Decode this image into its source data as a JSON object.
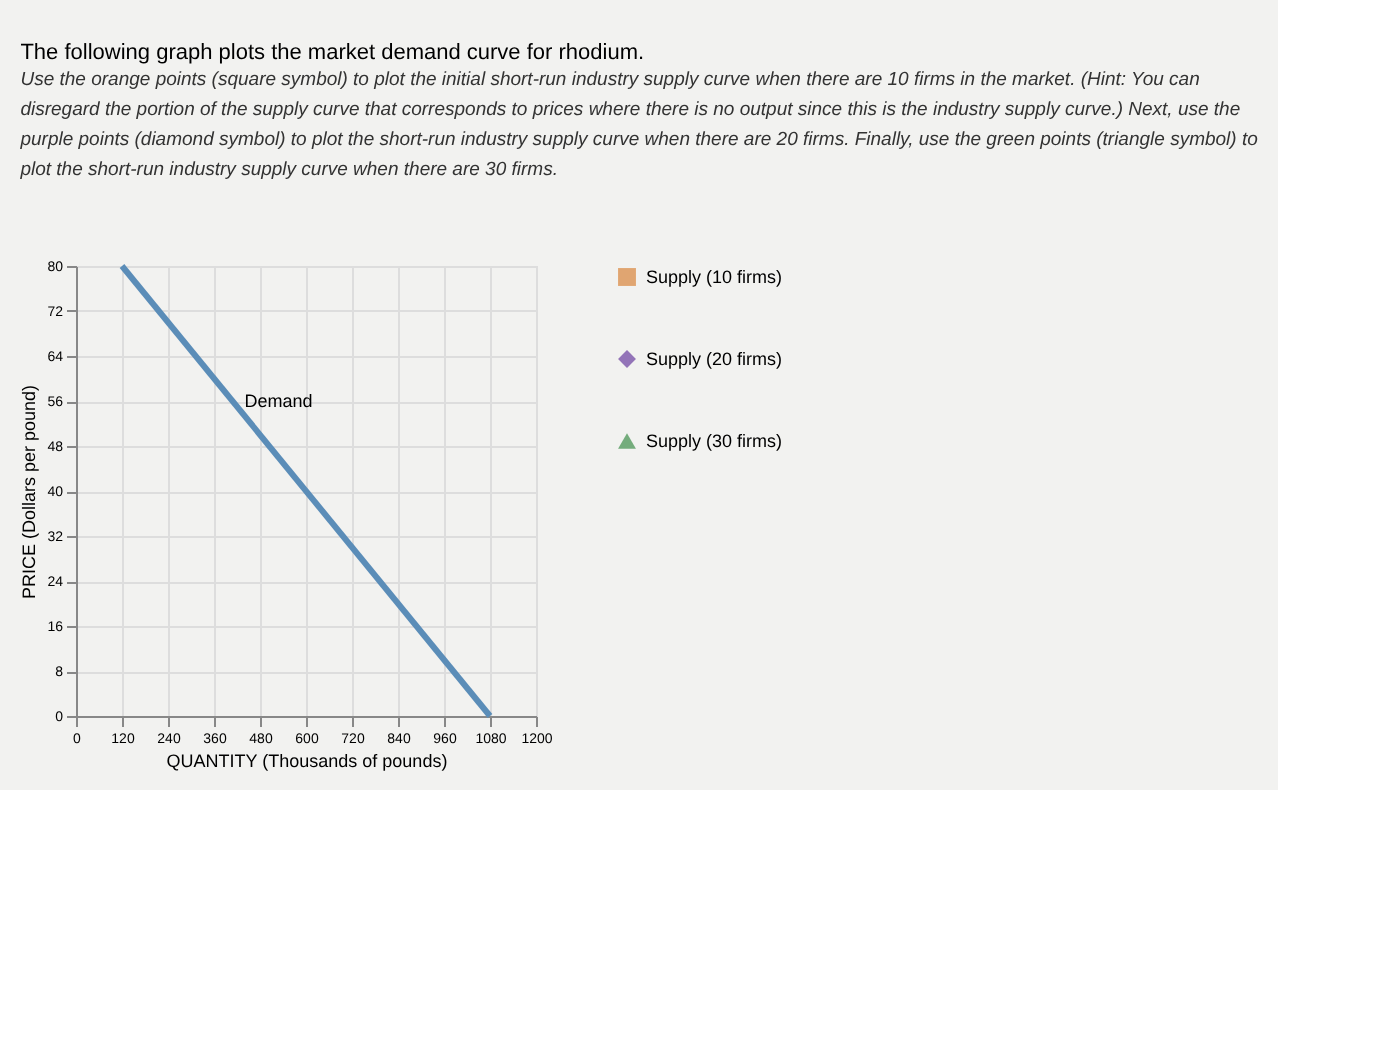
{
  "chart_data": {
    "type": "line",
    "title": "The following graph plots the market demand curve for rhodium.",
    "subtitle": [
      "Use the orange points (square symbol) to plot the initial short-run industry supply curve when there are 10 firms in the market. (Hint: You can",
      "disregard the portion of the supply curve that corresponds to prices where there is no output since this is the industry supply curve.) Next, use the",
      "purple points (diamond symbol) to plot the short-run industry supply curve when there are 20 firms. Finally, use the green points (triangle symbol) to",
      "plot the short-run industry supply curve when there are 30 firms."
    ],
    "xlabel": "QUANTITY (Thousands of pounds)",
    "ylabel": "PRICE (Dollars per pound)",
    "series": [
      {
        "color": "#5b8db8",
        "x": [
          120,
          1080
        ],
        "values": [
          80,
          0
        ]
      },
      {
        "type": "scatter",
        "name": "Supply (10 firms)",
        "color": "#d9843b",
        "marker": "square"
      },
      {
        "type": "scatter",
        "name": "Supply (20 firms)",
        "color": "#6b3fa0",
        "marker": "diamond"
      },
      {
        "type": "scatter",
        "name": "Supply (30 firms)",
        "color": "#3e8e4a",
        "marker": "triangle"
      }
    ],
    "annotations": [
      {
        "text": "Demand",
        "x": 408,
        "y": 56
      }
    ],
    "xlim": [
      0,
      1200
    ],
    "xticks": [
      0,
      120,
      240,
      360,
      480,
      600,
      720,
      840,
      960,
      1080,
      1200
    ],
    "ylim": [
      0,
      80
    ],
    "yticks": [
      0,
      8,
      16,
      24,
      32,
      40,
      48,
      56,
      64,
      72,
      80
    ],
    "grid": true,
    "legend": "right"
  }
}
